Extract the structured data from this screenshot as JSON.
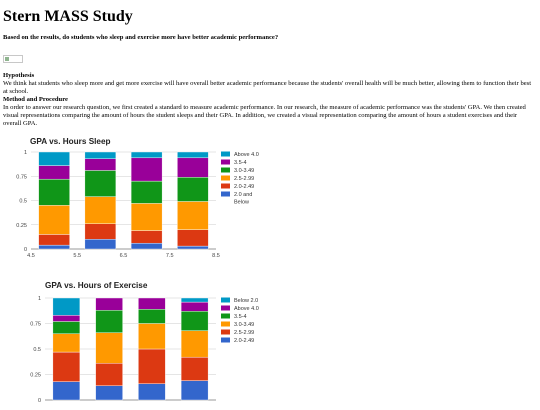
{
  "page": {
    "title": "Stern MASS Study",
    "question": "Based on the results, do students who sleep and exercise more have better academic performance?",
    "hypothesis_heading": "Hypothesis",
    "hypothesis_text": "We think hat students who sleep more and get more exercise will have overall better academic performance because the students' overall health will be much better, allowing them to function their best at school.",
    "method_heading": "Method and Procedure",
    "method_text": "In order to answer our research question, we first created a standard to measure academic performance. In our research, the measure of academic performance was the students' GPA. We then created visual representations comparing the amount of hours the student sleeps and their GPA. In addition, we created a visual representation comparing the amount of hours a student exercises and their overall GPA."
  },
  "chart_data": [
    {
      "type": "bar",
      "stacked": true,
      "title": "GPA vs. Hours Sleep",
      "xlabel": "",
      "ylabel": "",
      "xlim": [
        4.5,
        8.5
      ],
      "ylim": [
        0,
        1
      ],
      "xticks": [
        "4.5",
        "5.5",
        "6.5",
        "7.5",
        "8.5"
      ],
      "yticks": [
        "0",
        "0.25",
        "0.5",
        "0.75",
        "1"
      ],
      "legend_position": "right",
      "categories": [
        5,
        6,
        7,
        8
      ],
      "series": [
        {
          "name": "2.0 and Below",
          "color": "#3366cc",
          "values": [
            0.04,
            0.1,
            0.06,
            0.03
          ]
        },
        {
          "name": "2.0-2.49",
          "color": "#dc3912",
          "values": [
            0.11,
            0.16,
            0.13,
            0.17
          ]
        },
        {
          "name": "2.5-2.99",
          "color": "#ff9900",
          "values": [
            0.3,
            0.28,
            0.28,
            0.29
          ]
        },
        {
          "name": "3.0-3.49",
          "color": "#109618",
          "values": [
            0.27,
            0.27,
            0.23,
            0.25
          ]
        },
        {
          "name": "3.5-4",
          "color": "#990099",
          "values": [
            0.14,
            0.12,
            0.24,
            0.2
          ]
        },
        {
          "name": "Above 4.0",
          "color": "#0099c6",
          "values": [
            0.14,
            0.07,
            0.06,
            0.06
          ]
        }
      ],
      "legend_order": [
        "Above 4.0",
        "3.5-4",
        "3.0-3.49",
        "2.5-2.99",
        "2.0-2.49",
        "2.0 and Below"
      ]
    },
    {
      "type": "bar",
      "stacked": true,
      "title": "GPA vs. Hours of Exercise",
      "xlabel": "",
      "ylabel": "",
      "ylim": [
        0,
        1
      ],
      "yticks": [
        "0",
        "0.25",
        "0.5",
        "0.75",
        "1"
      ],
      "legend_position": "right",
      "categories": [
        "",
        "",
        "",
        ""
      ],
      "series": [
        {
          "name": "2.0-2.49",
          "color": "#3366cc",
          "values": [
            0.18,
            0.14,
            0.16,
            0.19
          ]
        },
        {
          "name": "2.5-2.99",
          "color": "#dc3912",
          "values": [
            0.29,
            0.22,
            0.34,
            0.23
          ]
        },
        {
          "name": "3.0-3.49",
          "color": "#ff9900",
          "values": [
            0.18,
            0.3,
            0.25,
            0.26
          ]
        },
        {
          "name": "3.5-4",
          "color": "#109618",
          "values": [
            0.12,
            0.22,
            0.14,
            0.19
          ]
        },
        {
          "name": "Above 4.0",
          "color": "#990099",
          "values": [
            0.06,
            0.12,
            0.11,
            0.09
          ]
        },
        {
          "name": "Below 2.0",
          "color": "#0099c6",
          "values": [
            0.17,
            0.0,
            0.0,
            0.04
          ]
        }
      ],
      "legend_order": [
        "Below 2.0",
        "Above 4.0",
        "3.5-4",
        "3.0-3.49",
        "2.5-2.99",
        "2.0-2.49"
      ]
    }
  ]
}
